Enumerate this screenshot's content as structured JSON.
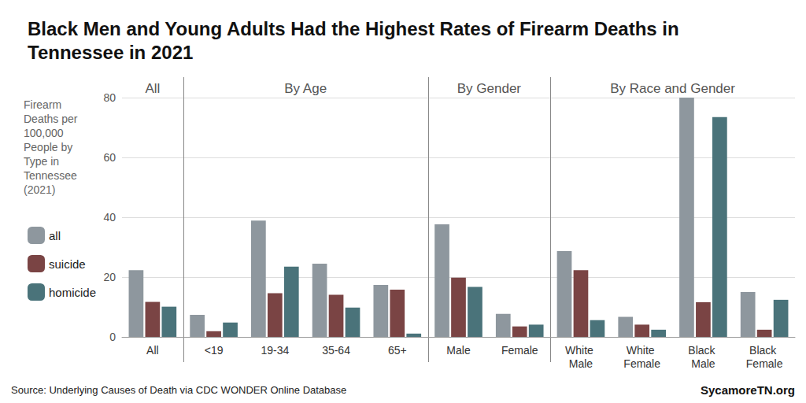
{
  "chart_data": {
    "type": "bar",
    "title": "Black Men and Young Adults Had the Highest Rates of Firearm Deaths in Tennessee in 2021",
    "y_label": "Firearm Deaths per 100,000 People by Type in Tennessee (2021)",
    "categories": [
      "All",
      "<19",
      "19-34",
      "35-64",
      "65+",
      "Male",
      "Female",
      "White Male",
      "White Female",
      "Black Male",
      "Black Female"
    ],
    "groups": [
      {
        "label": "All",
        "categories": [
          "All"
        ]
      },
      {
        "label": "By Age",
        "categories": [
          "<19",
          "19-34",
          "35-64",
          "65+"
        ]
      },
      {
        "label": "By Gender",
        "categories": [
          "Male",
          "Female"
        ]
      },
      {
        "label": "By Race and Gender",
        "categories": [
          "White Male",
          "White Female",
          "Black Male",
          "Black Female"
        ]
      }
    ],
    "series": [
      {
        "name": "all",
        "color": "#8e979e",
        "values": [
          22.3,
          7.4,
          38.9,
          24.5,
          17.4,
          37.6,
          7.7,
          28.7,
          6.7,
          80.0,
          15.0
        ]
      },
      {
        "name": "suicide",
        "color": "#7a4444",
        "values": [
          11.7,
          1.9,
          14.6,
          14.1,
          15.8,
          19.8,
          3.5,
          22.3,
          4.1,
          11.6,
          2.4
        ]
      },
      {
        "name": "homicide",
        "color": "#4a737a",
        "values": [
          10.1,
          4.8,
          23.5,
          9.8,
          1.1,
          16.7,
          4.1,
          5.6,
          2.4,
          73.5,
          12.4
        ]
      }
    ],
    "ylim": [
      0,
      80
    ],
    "yticks": [
      0,
      20,
      40,
      60,
      80
    ],
    "grid": true,
    "legend": "left",
    "source": "Source: Underlying Causes of Death via CDC WONDER Online Database",
    "credit": "SycamoreTN.org"
  }
}
